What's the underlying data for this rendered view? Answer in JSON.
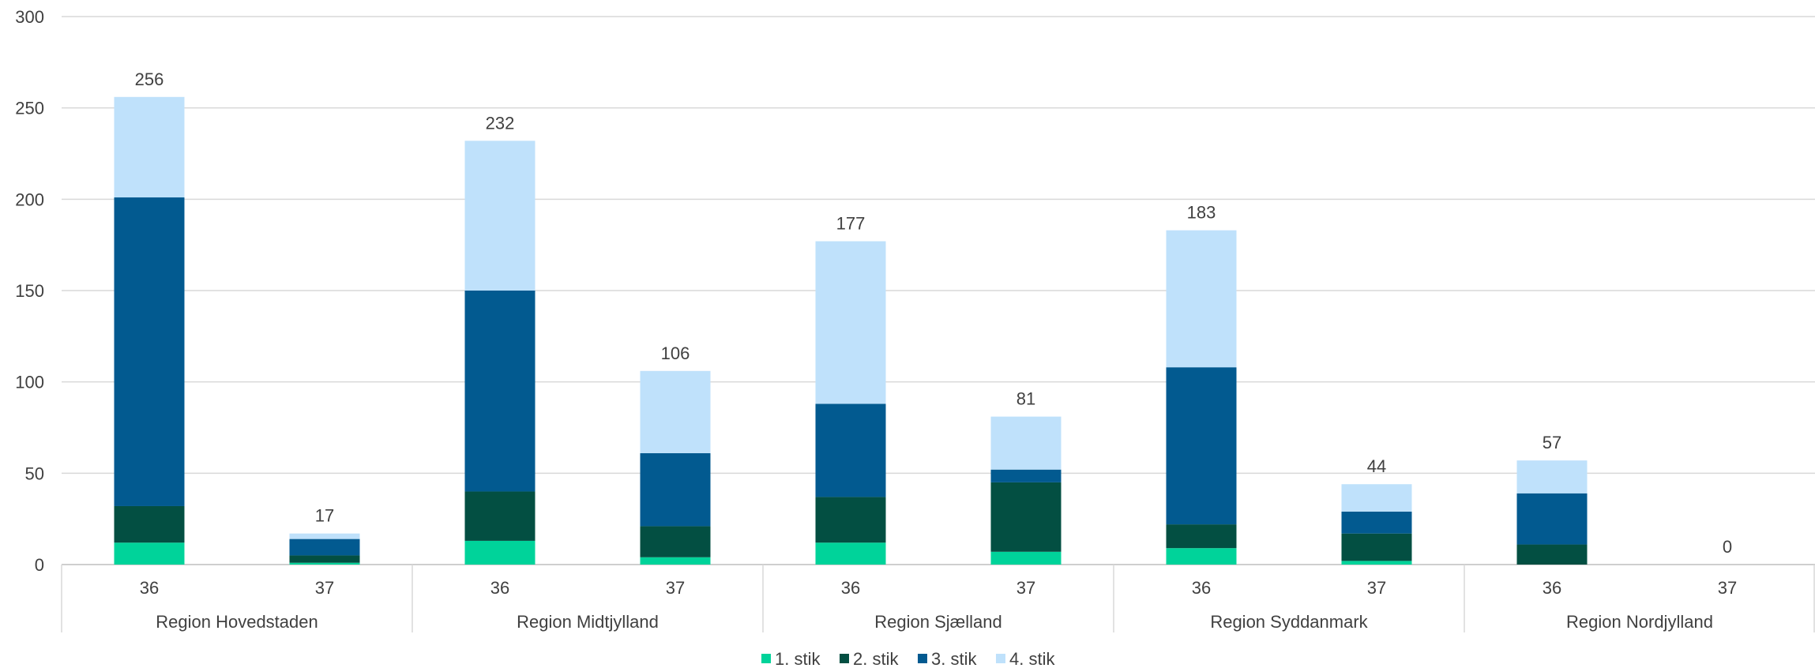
{
  "chart_data": {
    "type": "bar",
    "stacked": true,
    "grid": true,
    "legend_position": "bottom",
    "ylim": [
      0,
      300
    ],
    "yticks": [
      "0",
      "50",
      "100",
      "150",
      "200",
      "250",
      "300"
    ],
    "groups": [
      {
        "name": "Region Hovedstaden",
        "categories": [
          "36",
          "37"
        ]
      },
      {
        "name": "Region Midtjylland",
        "categories": [
          "36",
          "37"
        ]
      },
      {
        "name": "Region Sjælland",
        "categories": [
          "36",
          "37"
        ]
      },
      {
        "name": "Region Syddanmark",
        "categories": [
          "36",
          "37"
        ]
      },
      {
        "name": "Region Nordjylland",
        "categories": [
          "36",
          "37"
        ]
      }
    ],
    "series": [
      {
        "name": "1. stik",
        "color": "#00d39a",
        "values": [
          12,
          1,
          13,
          4,
          12,
          7,
          9,
          2,
          0,
          0
        ]
      },
      {
        "name": "2. stik",
        "color": "#034f42",
        "values": [
          20,
          4,
          27,
          17,
          25,
          38,
          13,
          15,
          11,
          0
        ]
      },
      {
        "name": "3. stik",
        "color": "#025a90",
        "values": [
          169,
          9,
          110,
          40,
          51,
          7,
          86,
          12,
          28,
          0
        ]
      },
      {
        "name": "4. stik",
        "color": "#bfe1fb",
        "values": [
          55,
          3,
          82,
          45,
          89,
          29,
          75,
          15,
          18,
          0
        ]
      }
    ],
    "totals": [
      256,
      17,
      232,
      106,
      177,
      81,
      183,
      44,
      57,
      0
    ],
    "total_labels": [
      "256",
      "17",
      "232",
      "106",
      "177",
      "81",
      "183",
      "44",
      "57",
      "0"
    ]
  }
}
